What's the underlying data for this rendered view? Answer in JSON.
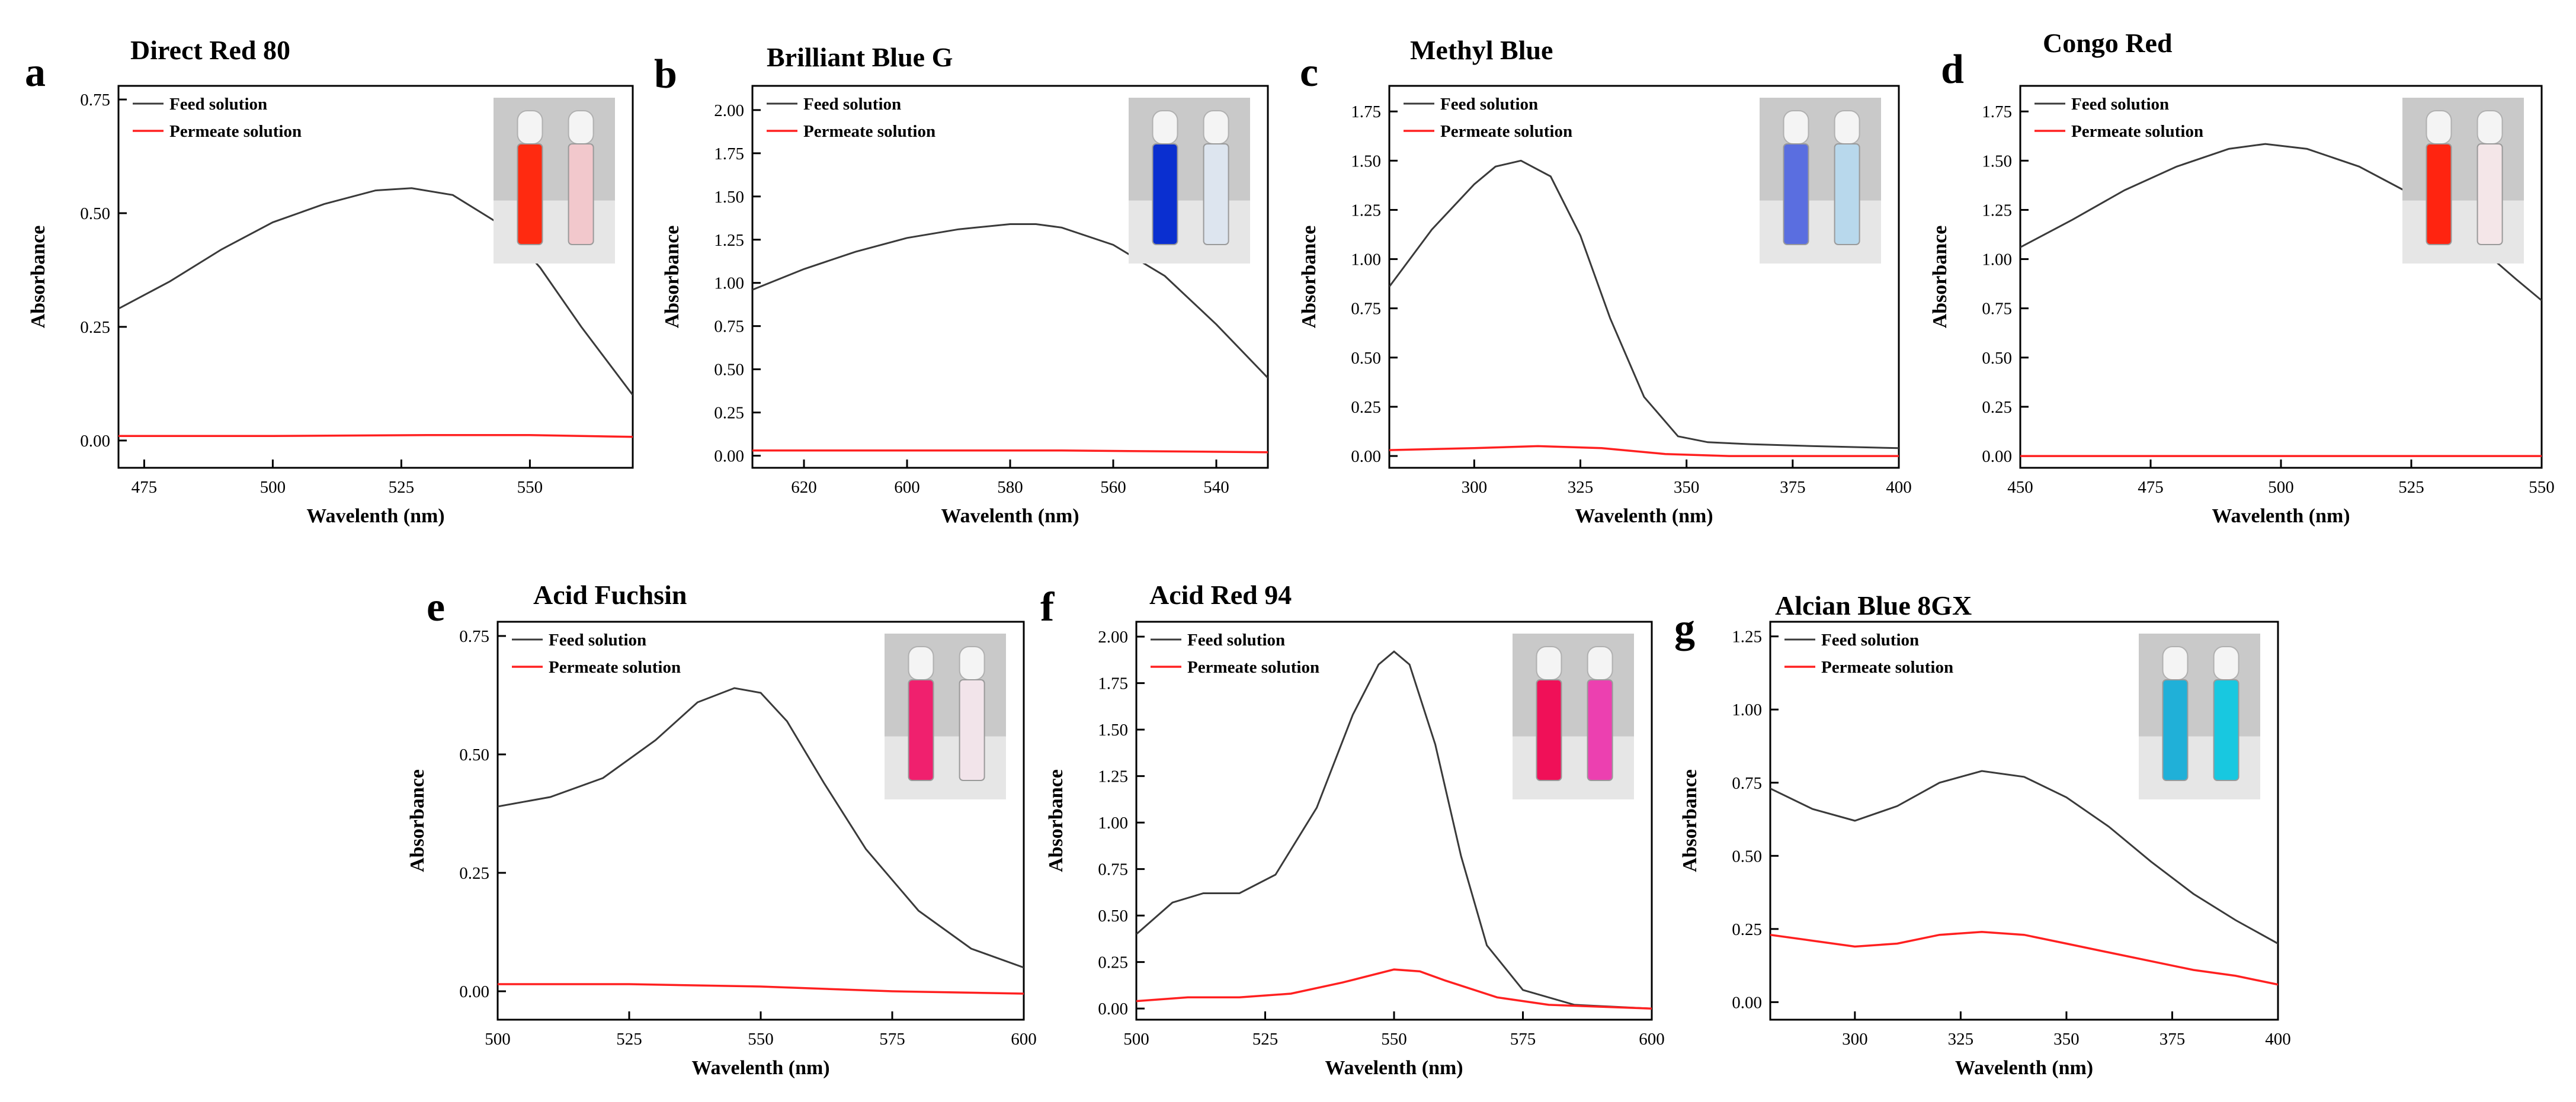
{
  "legend": {
    "feed": "Feed solution",
    "permeate": "Permeate solution"
  },
  "colors": {
    "feed": "#3a3a3a",
    "permeate": "#ff2020"
  },
  "chart_data": [
    {
      "letter": "a",
      "title": "Direct Red 80",
      "type": "line",
      "xlabel": "Wavelenth (nm)",
      "ylabel": "Absorbance",
      "xlim": [
        470,
        570
      ],
      "ylim": [
        -0.06,
        0.78
      ],
      "xticks": [
        475,
        500,
        525,
        550
      ],
      "yticks": [
        0.0,
        0.25,
        0.5,
        0.75
      ],
      "ytick_labels": [
        "0.00",
        "0.25",
        "0.50",
        "0.75"
      ],
      "xtick_labels": [
        "475",
        "500",
        "525",
        "550"
      ],
      "inset": {
        "left": "#ff2a10",
        "right": "#f2c8cc"
      },
      "series": [
        {
          "name": "Feed solution",
          "x": [
            470,
            480,
            490,
            500,
            510,
            520,
            527,
            535,
            545,
            552,
            560,
            570
          ],
          "y": [
            0.29,
            0.35,
            0.42,
            0.48,
            0.52,
            0.55,
            0.555,
            0.54,
            0.47,
            0.38,
            0.25,
            0.1
          ]
        },
        {
          "name": "Permeate solution",
          "x": [
            470,
            500,
            530,
            550,
            570
          ],
          "y": [
            0.01,
            0.01,
            0.012,
            0.012,
            0.008
          ]
        }
      ]
    },
    {
      "letter": "b",
      "title": "Brilliant Blue G",
      "type": "line",
      "xlabel": "Wavelenth (nm)",
      "ylabel": "Absorbance",
      "xlim": [
        630,
        530
      ],
      "ylim": [
        -0.07,
        2.14
      ],
      "xticks": [
        620,
        600,
        580,
        560,
        540
      ],
      "yticks": [
        0.0,
        0.25,
        0.5,
        0.75,
        1.0,
        1.25,
        1.5,
        1.75,
        2.0
      ],
      "ytick_labels": [
        "0.00",
        "0.25",
        "0.50",
        "0.75",
        "1.00",
        "1.25",
        "1.50",
        "1.75",
        "2.00"
      ],
      "xtick_labels": [
        "620",
        "600",
        "580",
        "560",
        "540"
      ],
      "inset": {
        "left": "#0a2fd0",
        "right": "#dde5ef"
      },
      "series": [
        {
          "name": "Feed solution",
          "x": [
            630,
            620,
            610,
            600,
            590,
            580,
            575,
            570,
            560,
            550,
            540,
            530
          ],
          "y": [
            0.96,
            1.08,
            1.18,
            1.26,
            1.31,
            1.34,
            1.34,
            1.32,
            1.22,
            1.04,
            0.76,
            0.45
          ]
        },
        {
          "name": "Permeate solution",
          "x": [
            630,
            600,
            570,
            530
          ],
          "y": [
            0.03,
            0.03,
            0.03,
            0.02
          ]
        }
      ]
    },
    {
      "letter": "c",
      "title": "Methyl Blue",
      "type": "line",
      "xlabel": "Wavelenth (nm)",
      "ylabel": "Absorbance",
      "xlim": [
        280,
        400
      ],
      "ylim": [
        -0.06,
        1.88
      ],
      "xticks": [
        300,
        325,
        350,
        375,
        400
      ],
      "yticks": [
        0.0,
        0.25,
        0.5,
        0.75,
        1.0,
        1.25,
        1.5,
        1.75
      ],
      "ytick_labels": [
        "0.00",
        "0.25",
        "0.50",
        "0.75",
        "1.00",
        "1.25",
        "1.50",
        "1.75"
      ],
      "xtick_labels": [
        "300",
        "325",
        "350",
        "375",
        "400"
      ],
      "inset": {
        "left": "#5a6ee0",
        "right": "#b8d8ec"
      },
      "series": [
        {
          "name": "Feed solution",
          "x": [
            280,
            290,
            300,
            305,
            311,
            318,
            325,
            332,
            340,
            348,
            355,
            365,
            380,
            400
          ],
          "y": [
            0.86,
            1.15,
            1.38,
            1.47,
            1.5,
            1.42,
            1.12,
            0.7,
            0.3,
            0.1,
            0.07,
            0.06,
            0.05,
            0.04
          ]
        },
        {
          "name": "Permeate solution",
          "x": [
            280,
            300,
            315,
            330,
            345,
            360,
            400
          ],
          "y": [
            0.03,
            0.04,
            0.05,
            0.04,
            0.01,
            0.0,
            0.0
          ]
        }
      ]
    },
    {
      "letter": "d",
      "title": "Congo Red",
      "type": "line",
      "xlabel": "Wavelenth (nm)",
      "ylabel": "Absorbance",
      "xlim": [
        450,
        550
      ],
      "ylim": [
        -0.06,
        1.88
      ],
      "xticks": [
        450,
        475,
        500,
        525,
        550
      ],
      "yticks": [
        0.0,
        0.25,
        0.5,
        0.75,
        1.0,
        1.25,
        1.5,
        1.75
      ],
      "ytick_labels": [
        "0.00",
        "0.25",
        "0.50",
        "0.75",
        "1.00",
        "1.25",
        "1.50",
        "1.75"
      ],
      "xtick_labels": [
        "450",
        "475",
        "500",
        "525",
        "550"
      ],
      "inset": {
        "left": "#ff2410",
        "right": "#f4e6e8"
      },
      "series": [
        {
          "name": "Feed solution",
          "x": [
            450,
            460,
            470,
            480,
            490,
            497,
            505,
            515,
            525,
            535,
            545,
            550
          ],
          "y": [
            1.06,
            1.2,
            1.35,
            1.47,
            1.56,
            1.585,
            1.56,
            1.47,
            1.33,
            1.13,
            0.9,
            0.79
          ]
        },
        {
          "name": "Permeate solution",
          "x": [
            450,
            500,
            550
          ],
          "y": [
            0.0,
            0.0,
            0.0
          ]
        }
      ]
    },
    {
      "letter": "e",
      "title": "Acid Fuchsin",
      "type": "line",
      "xlabel": "Wavelenth (nm)",
      "ylabel": "Absorbance",
      "xlim": [
        500,
        600
      ],
      "ylim": [
        -0.06,
        0.78
      ],
      "xticks": [
        500,
        525,
        550,
        575,
        600
      ],
      "yticks": [
        0.0,
        0.25,
        0.5,
        0.75
      ],
      "ytick_labels": [
        "0.00",
        "0.25",
        "0.50",
        "0.75"
      ],
      "xtick_labels": [
        "500",
        "525",
        "550",
        "575",
        "600"
      ],
      "inset": {
        "left": "#f0206e",
        "right": "#f2e4ea"
      },
      "series": [
        {
          "name": "Feed solution",
          "x": [
            500,
            510,
            520,
            530,
            538,
            545,
            550,
            555,
            562,
            570,
            580,
            590,
            600
          ],
          "y": [
            0.39,
            0.41,
            0.45,
            0.53,
            0.61,
            0.64,
            0.63,
            0.57,
            0.44,
            0.3,
            0.17,
            0.09,
            0.05
          ]
        },
        {
          "name": "Permeate solution",
          "x": [
            500,
            525,
            550,
            575,
            600
          ],
          "y": [
            0.015,
            0.015,
            0.01,
            0.0,
            -0.005
          ]
        }
      ]
    },
    {
      "letter": "f",
      "title": "Acid Red 94",
      "type": "line",
      "xlabel": "Wavelenth (nm)",
      "ylabel": "Absorbance",
      "xlim": [
        500,
        600
      ],
      "ylim": [
        -0.06,
        2.08
      ],
      "xticks": [
        500,
        525,
        550,
        575,
        600
      ],
      "yticks": [
        0.0,
        0.25,
        0.5,
        0.75,
        1.0,
        1.25,
        1.5,
        1.75,
        2.0
      ],
      "ytick_labels": [
        "0.00",
        "0.25",
        "0.50",
        "0.75",
        "1.00",
        "1.25",
        "1.50",
        "1.75",
        "2.00"
      ],
      "xtick_labels": [
        "500",
        "525",
        "550",
        "575",
        "600"
      ],
      "inset": {
        "left": "#f01058",
        "right": "#ec40b0"
      },
      "series": [
        {
          "name": "Feed solution",
          "x": [
            500,
            507,
            513,
            520,
            527,
            535,
            542,
            547,
            550,
            553,
            558,
            563,
            568,
            575,
            585,
            600
          ],
          "y": [
            0.4,
            0.57,
            0.62,
            0.62,
            0.72,
            1.08,
            1.58,
            1.85,
            1.92,
            1.85,
            1.42,
            0.82,
            0.34,
            0.1,
            0.02,
            0.0
          ]
        },
        {
          "name": "Permeate solution",
          "x": [
            500,
            510,
            520,
            530,
            540,
            550,
            555,
            560,
            570,
            580,
            600
          ],
          "y": [
            0.04,
            0.06,
            0.06,
            0.08,
            0.14,
            0.21,
            0.2,
            0.15,
            0.06,
            0.02,
            0.0
          ]
        }
      ]
    },
    {
      "letter": "g",
      "title": "Alcian Blue 8GX",
      "type": "line",
      "xlabel": "Wavelenth (nm)",
      "ylabel": "Absorbance",
      "xlim": [
        280,
        400
      ],
      "ylim": [
        -0.06,
        1.3
      ],
      "xticks": [
        300,
        325,
        350,
        375,
        400
      ],
      "yticks": [
        0.0,
        0.25,
        0.5,
        0.75,
        1.0,
        1.25
      ],
      "ytick_labels": [
        "0.00",
        "0.25",
        "0.50",
        "0.75",
        "1.00",
        "1.25"
      ],
      "xtick_labels": [
        "300",
        "325",
        "350",
        "375",
        "400"
      ],
      "inset": {
        "left": "#20b0d8",
        "right": "#18c8e0"
      },
      "series": [
        {
          "name": "Feed solution",
          "x": [
            280,
            290,
            300,
            310,
            320,
            330,
            340,
            350,
            360,
            370,
            380,
            390,
            400
          ],
          "y": [
            0.73,
            0.66,
            0.62,
            0.67,
            0.75,
            0.79,
            0.77,
            0.7,
            0.6,
            0.48,
            0.37,
            0.28,
            0.2
          ]
        },
        {
          "name": "Permeate solution",
          "x": [
            280,
            290,
            300,
            310,
            320,
            330,
            340,
            350,
            360,
            370,
            380,
            390,
            400
          ],
          "y": [
            0.23,
            0.21,
            0.19,
            0.2,
            0.23,
            0.24,
            0.23,
            0.2,
            0.17,
            0.14,
            0.11,
            0.09,
            0.06
          ]
        }
      ]
    }
  ]
}
